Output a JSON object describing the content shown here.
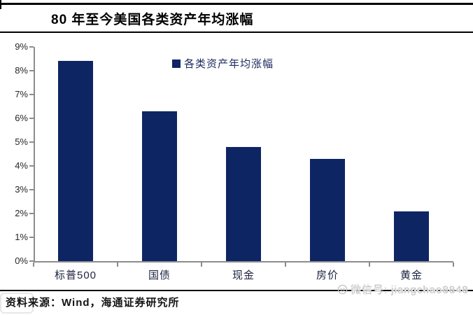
{
  "page": {
    "title": "80 年至今美国各类资产年均涨幅",
    "source_text": "资料来源：Wind，海通证券研究所",
    "watermark_text": "微信号: jiangchao8848"
  },
  "legend": {
    "label": "各类资产年均涨幅",
    "swatch_color": "#0d2563"
  },
  "chart_data": {
    "type": "bar",
    "title": "80 年至今美国各类资产年均涨幅",
    "series_name": "各类资产年均涨幅",
    "categories": [
      "标普500",
      "国债",
      "现金",
      "房价",
      "黄金"
    ],
    "values": [
      8.4,
      6.3,
      4.8,
      4.3,
      2.1
    ],
    "unit": "%",
    "ylim": [
      0,
      9
    ],
    "ytick_step": 1,
    "ytick_labels": [
      "0%",
      "1%",
      "2%",
      "3%",
      "4%",
      "5%",
      "6%",
      "7%",
      "8%",
      "9%"
    ],
    "xlabel": "",
    "ylabel": "",
    "grid": false,
    "legend_position": "top-center",
    "bar_color": "#0d2563",
    "axis_color": "#8c8c8c"
  }
}
